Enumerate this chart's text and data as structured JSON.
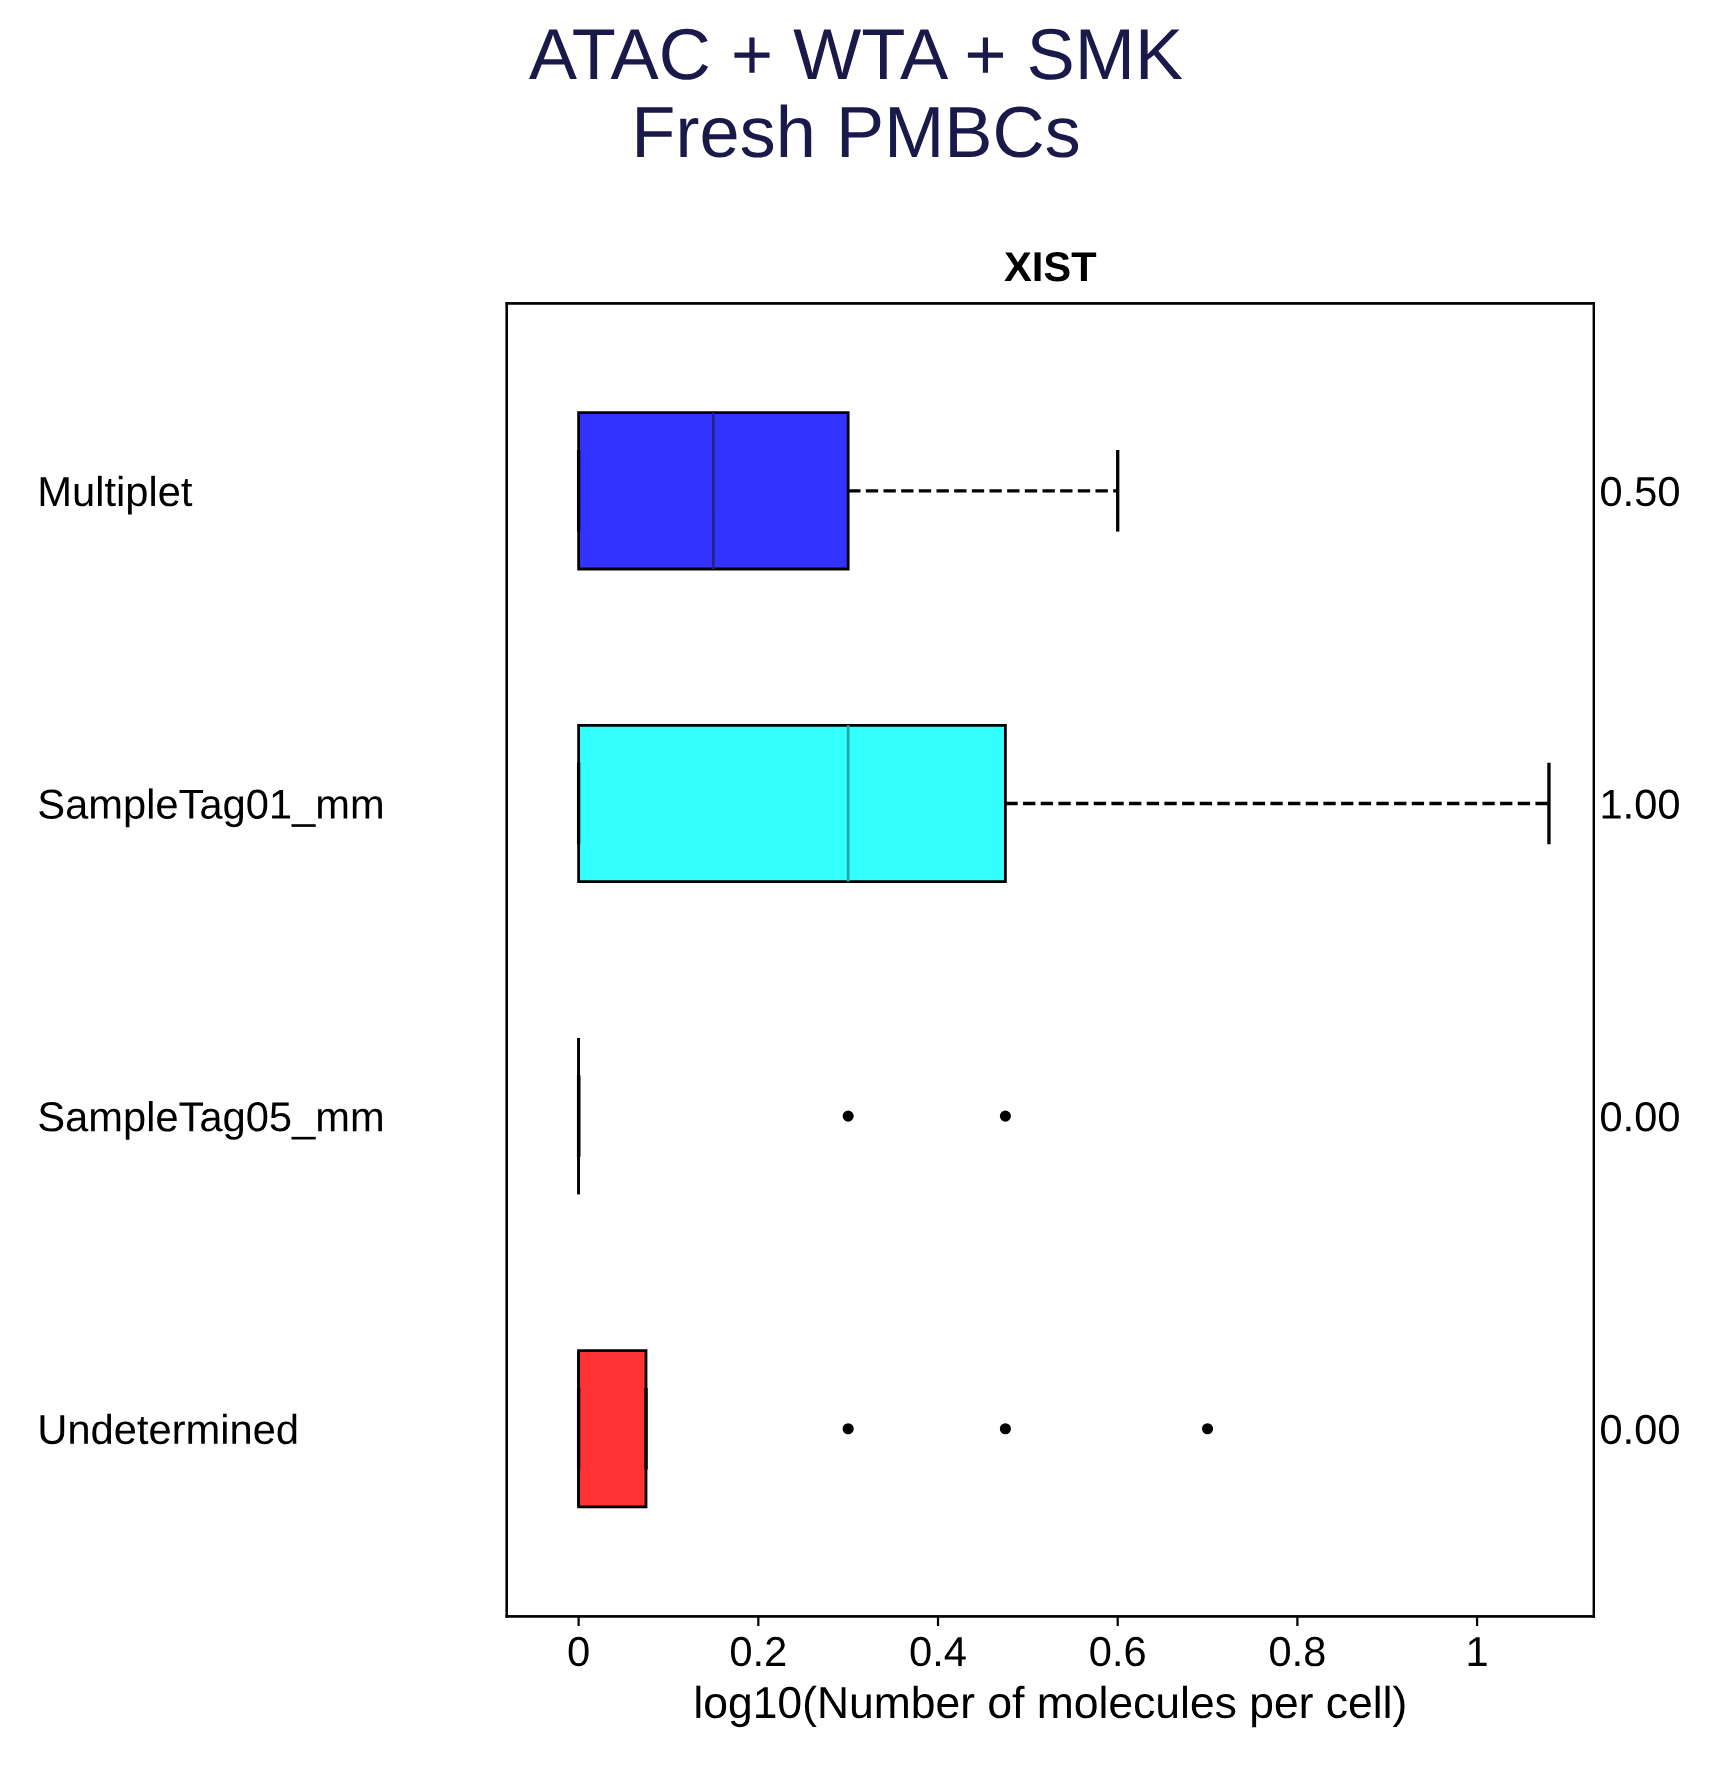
{
  "chart_data": {
    "type": "box",
    "title": "ATAC + WTA + SMK\nFresh PMBCs",
    "subtitle": "XIST",
    "orientation": "horizontal",
    "categories": [
      "Multiplet",
      "SampleTag01_mm",
      "SampleTag05_mm",
      "Undetermined"
    ],
    "y2_categories": [
      "0.50",
      "1.00",
      "0.00",
      "0.00"
    ],
    "colors": [
      "#3333ff",
      "#33ffff",
      "#000000",
      "#ff3333"
    ],
    "boxes": [
      {
        "low": 0,
        "q1": 0,
        "median": 0.15,
        "q3": 0.3,
        "high": 0.6
      },
      {
        "low": 0,
        "q1": 0,
        "median": 0.3,
        "q3": 0.475,
        "high": 1.08
      },
      {
        "low": 0,
        "q1": 0,
        "median": 0,
        "q3": 0,
        "high": 0,
        "outliers": [
          0.3,
          0.475
        ]
      },
      {
        "low": 0,
        "q1": 0,
        "median": 0,
        "q3": 0.075,
        "high": 0.075,
        "outliers": [
          0.3,
          0.475,
          0.7
        ]
      }
    ],
    "xlabel": "log10(Number of molecules per cell)",
    "xlim": [
      -0.08,
      1.13
    ],
    "xticks": [
      0,
      0.2,
      0.4,
      0.6,
      0.8,
      1
    ],
    "grid": false,
    "line_style": "dashed"
  }
}
